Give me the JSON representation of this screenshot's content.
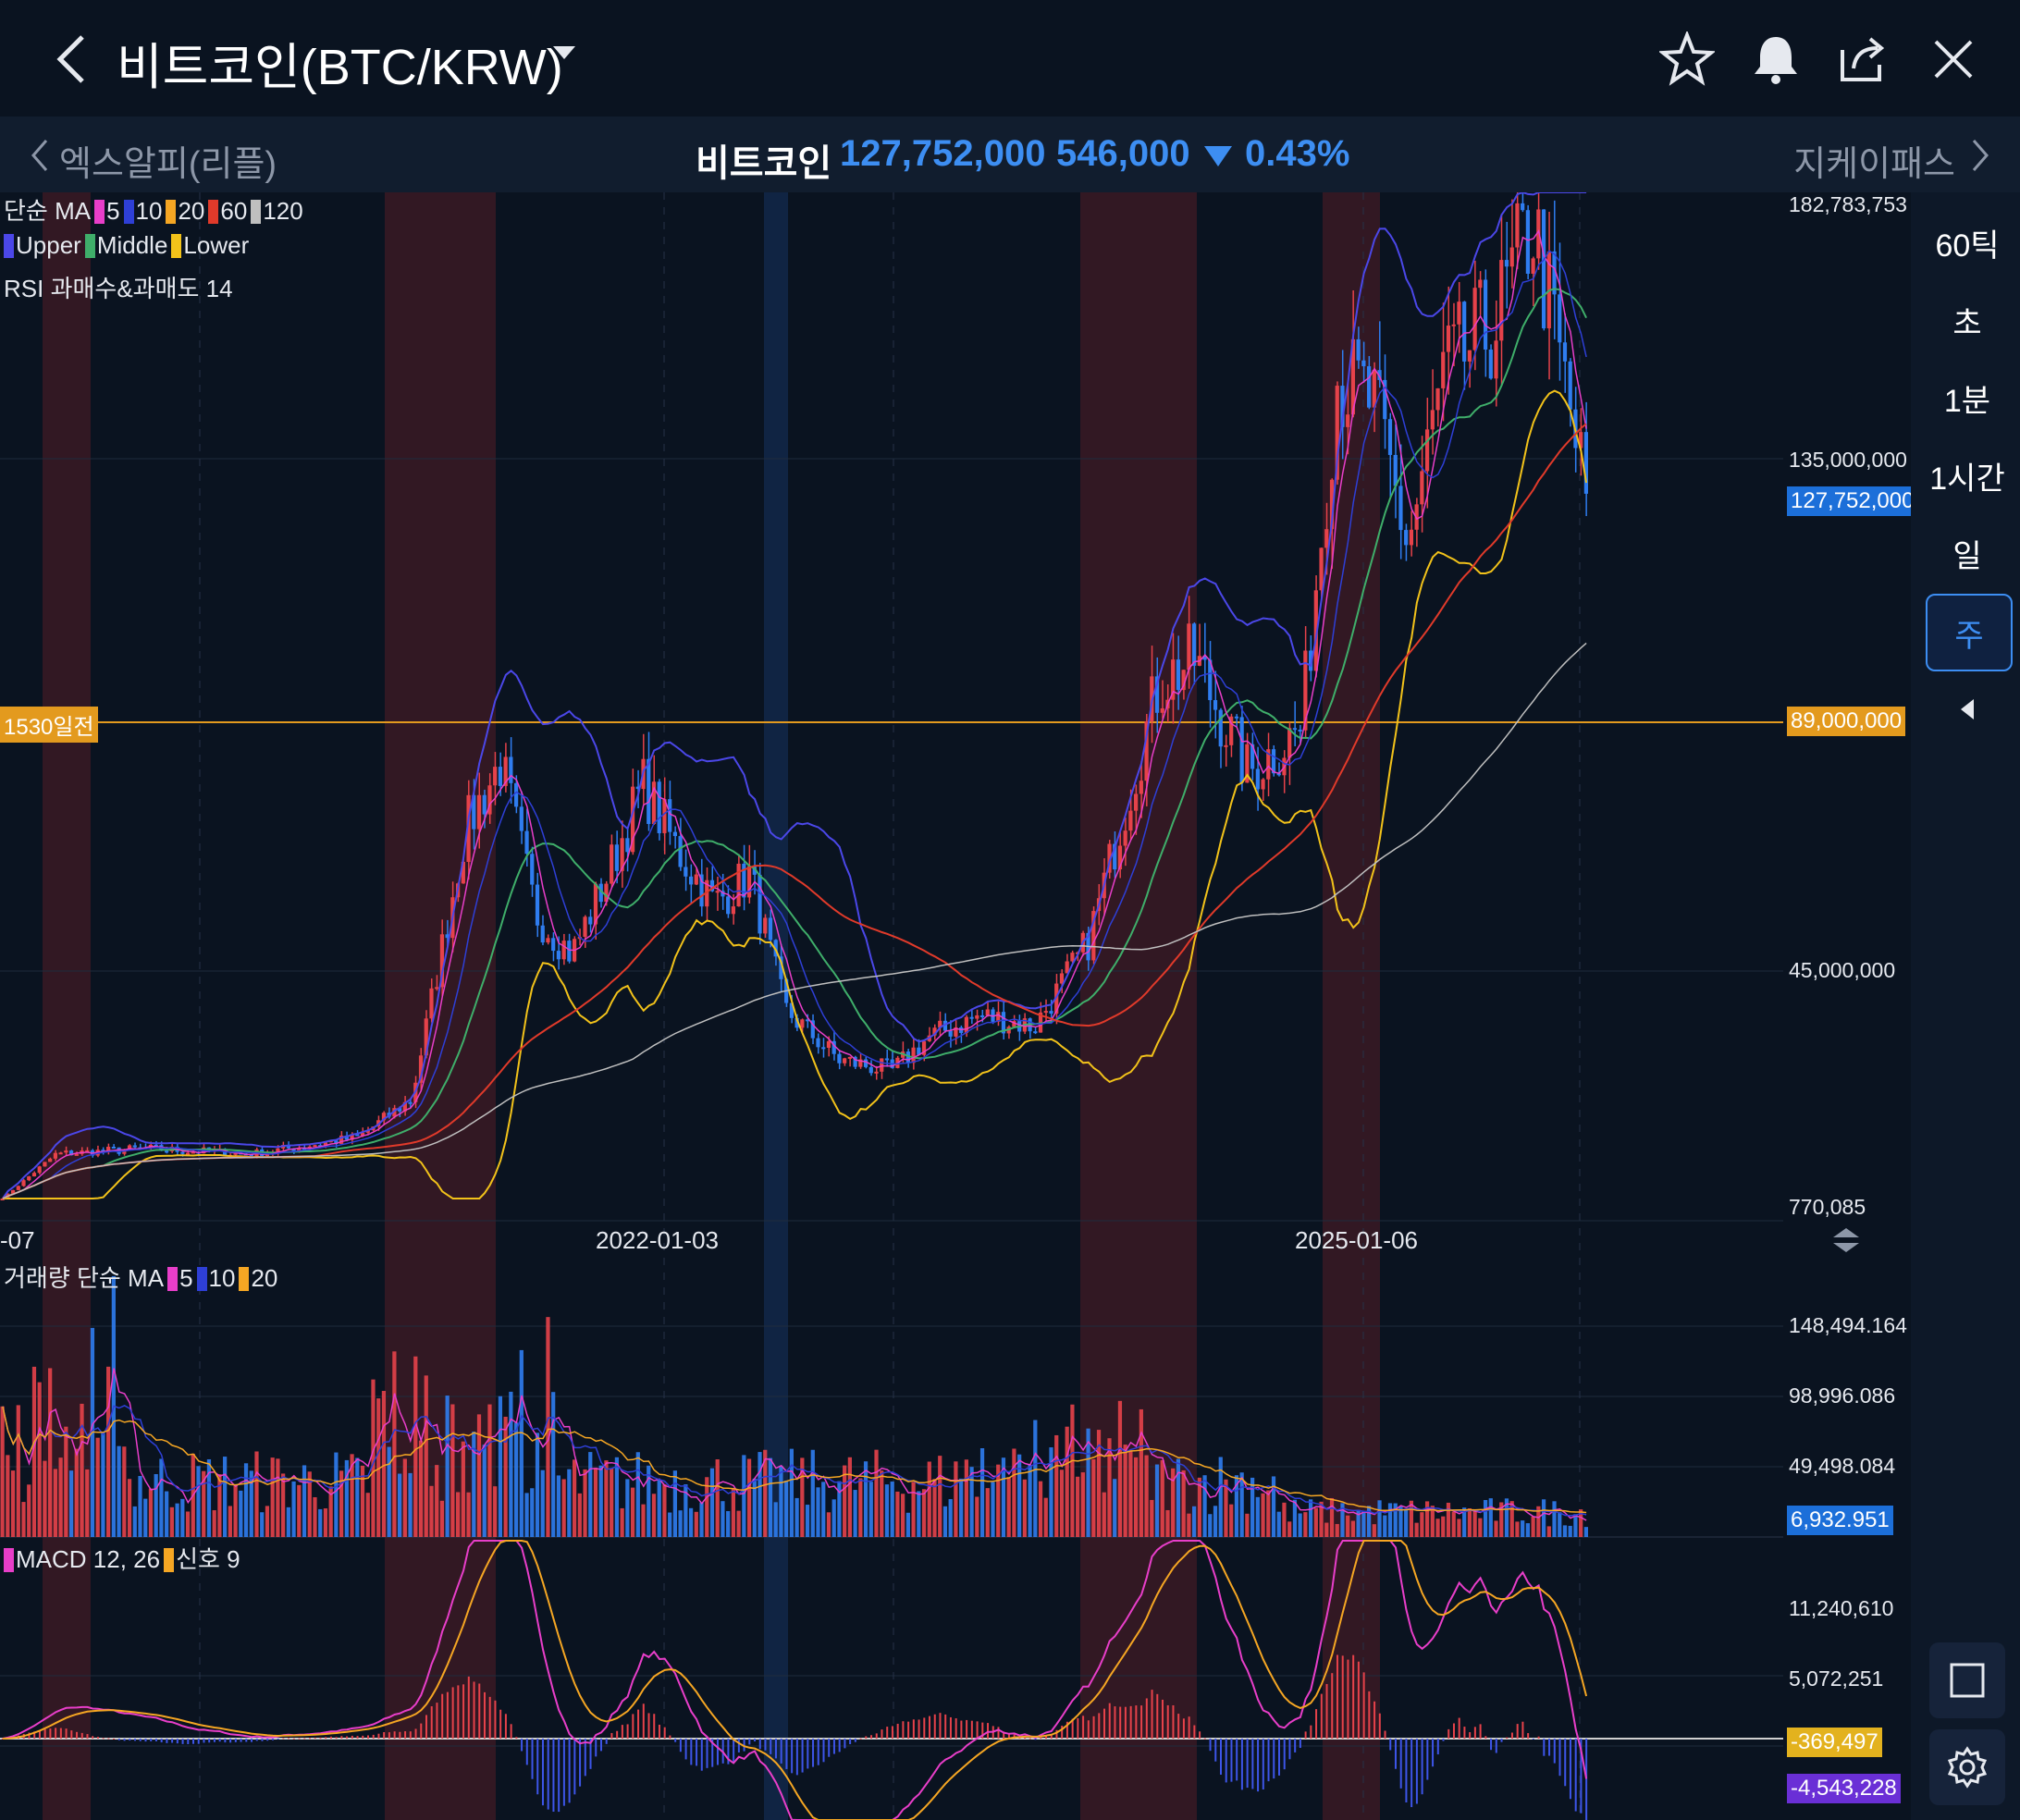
{
  "header": {
    "title": "비트코인(BTC/KRW)",
    "icons": [
      "back-arrow-icon",
      "star-icon",
      "bell-icon",
      "share-icon",
      "close-icon"
    ]
  },
  "ticker": {
    "prev": "엑스알피(리플)",
    "next": "지케이패스",
    "name": "비트코인",
    "price": "127,752,000",
    "change": "546,000",
    "change_pct": "0.43%",
    "direction": "down",
    "color": "#3d8ef2"
  },
  "timeframes": [
    "60틱",
    "초",
    "1분",
    "1시간",
    "일",
    "주"
  ],
  "active_timeframe": "주",
  "main_chart": {
    "legend_ma_label": "단순 MA",
    "ma_periods": [
      "5",
      "10",
      "20",
      "60",
      "120"
    ],
    "ma_colors": [
      "#e83ec9",
      "#2e3fd6",
      "#f5a623",
      "#e03a2a",
      "#bfbfbf"
    ],
    "bb_labels": [
      "Upper",
      "Middle",
      "Lower"
    ],
    "bb_colors": [
      "#4b47e8",
      "#3fae6a",
      "#f2c21a"
    ],
    "rsi_label": "RSI 과매수&과매도 14",
    "y_ticks": [
      "182,783,753",
      "135,000,000",
      "45,000,000",
      "770,085"
    ],
    "current_price_tag": "127,752,000",
    "hline_label": "1530일전",
    "hline_value": "89,000,000",
    "x_labels": [
      "-07",
      "2022-01-03",
      "2025-01-06"
    ]
  },
  "volume_chart": {
    "label": "거래량 단순 MA",
    "ma_periods": [
      "5",
      "10",
      "20"
    ],
    "y_ticks": [
      "148,494.164",
      "98,996.086",
      "49,498.084"
    ],
    "current_tag": "6,932.951"
  },
  "macd_chart": {
    "label": "MACD 12, 26",
    "signal_label": "신호 9",
    "y_ticks": [
      "11,240,610",
      "5,072,251"
    ],
    "signal_tag": "-369,497",
    "macd_tag": "-4,543,228"
  },
  "chart_data": {
    "type": "candlestick",
    "x_range": [
      "2020 weekly",
      "2025"
    ],
    "ylim": [
      770085,
      182783753
    ],
    "price_path": [
      [
        0.0,
        1.0
      ],
      [
        0.03,
        12.0
      ],
      [
        0.08,
        13.0
      ],
      [
        0.14,
        12.0
      ],
      [
        0.2,
        15.0
      ],
      [
        0.23,
        22.0
      ],
      [
        0.26,
        70.0
      ],
      [
        0.28,
        82.0
      ],
      [
        0.3,
        55.0
      ],
      [
        0.32,
        48.0
      ],
      [
        0.34,
        62.0
      ],
      [
        0.36,
        78.0
      ],
      [
        0.38,
        66.0
      ],
      [
        0.4,
        57.0
      ],
      [
        0.42,
        62.0
      ],
      [
        0.44,
        38.0
      ],
      [
        0.47,
        29.0
      ],
      [
        0.5,
        27.0
      ],
      [
        0.52,
        33.0
      ],
      [
        0.55,
        37.0
      ],
      [
        0.58,
        35.0
      ],
      [
        0.61,
        50.0
      ],
      [
        0.65,
        96.0
      ],
      [
        0.67,
        100.0
      ],
      [
        0.7,
        80.0
      ],
      [
        0.73,
        88.0
      ],
      [
        0.75,
        150.0
      ],
      [
        0.77,
        145.0
      ],
      [
        0.79,
        120.0
      ],
      [
        0.81,
        150.0
      ],
      [
        0.84,
        160.0
      ],
      [
        0.86,
        178.0
      ],
      [
        0.88,
        145.0
      ],
      [
        0.89,
        127.75
      ]
    ],
    "highlight_bands": [
      "red",
      "red",
      "blue",
      "red",
      "red"
    ]
  }
}
